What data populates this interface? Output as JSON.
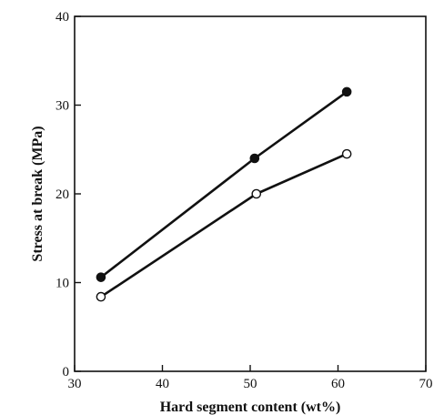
{
  "chart_data": {
    "type": "line",
    "xlabel": "Hard segment content (wt%)",
    "ylabel": "Stress at break (MPa)",
    "xlim": [
      30,
      70
    ],
    "ylim": [
      0,
      40
    ],
    "x_ticks": [
      30,
      40,
      50,
      60,
      70
    ],
    "y_ticks": [
      0,
      10,
      20,
      30,
      40
    ],
    "grid": false,
    "legend": "none",
    "series": [
      {
        "marker": "filled-circle",
        "x": [
          33,
          50.5,
          61
        ],
        "y": [
          10.6,
          24.0,
          31.5
        ]
      },
      {
        "marker": "open-circle",
        "x": [
          33,
          50.7,
          61
        ],
        "y": [
          8.4,
          20.0,
          24.5
        ]
      }
    ]
  }
}
